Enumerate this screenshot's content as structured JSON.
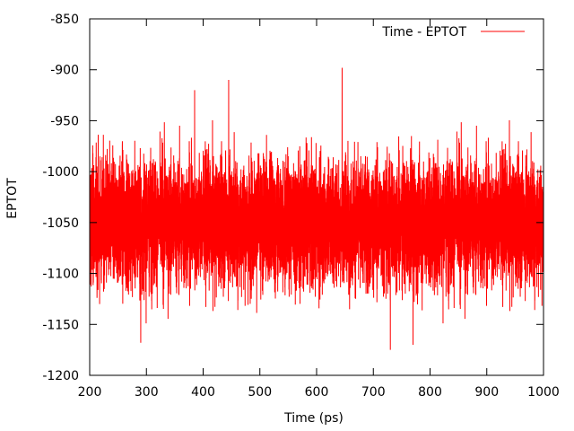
{
  "chart_data": {
    "type": "line",
    "xlabel": "Time (ps)",
    "ylabel": "EPTOT",
    "xlim": [
      200,
      1000
    ],
    "ylim": [
      -1200,
      -850
    ],
    "xticks": [
      "200",
      "300",
      "400",
      "500",
      "600",
      "700",
      "800",
      "900",
      "1000"
    ],
    "yticks": [
      "-850",
      "-900",
      "-950",
      "-1000",
      "-1050",
      "-1100",
      "-1150",
      "-1200"
    ],
    "grid": false,
    "legend_position": "top-right",
    "series": [
      {
        "name": "Time - EPTOT",
        "color": "#ff0000",
        "summary": {
          "mean": -1050,
          "typical_range": [
            -1100,
            -1000
          ],
          "max": -898,
          "min": -1175
        },
        "notable_points": [
          {
            "x": 385,
            "y": -920
          },
          {
            "x": 445,
            "y": -910
          },
          {
            "x": 645,
            "y": -898
          },
          {
            "x": 730,
            "y": -1175
          },
          {
            "x": 290,
            "y": -1168
          },
          {
            "x": 770,
            "y": -1170
          }
        ]
      }
    ]
  }
}
